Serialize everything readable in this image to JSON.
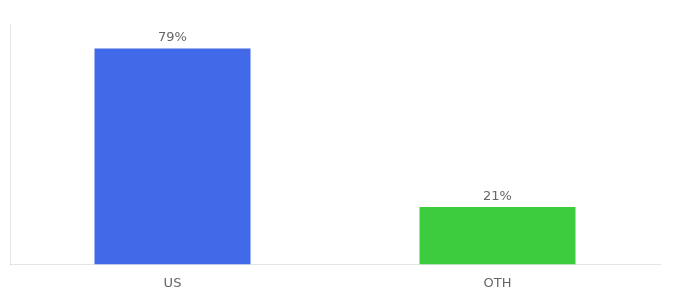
{
  "chart_data": {
    "type": "bar",
    "categories": [
      "US",
      "OTH"
    ],
    "values": [
      79,
      21
    ],
    "value_labels": [
      "79%",
      "21%"
    ],
    "colors": [
      "#4169e8",
      "#3dcc3d"
    ],
    "ylim": [
      0,
      88
    ],
    "grid": false,
    "legend": false,
    "data_labels": true,
    "tick_labels": "x"
  }
}
